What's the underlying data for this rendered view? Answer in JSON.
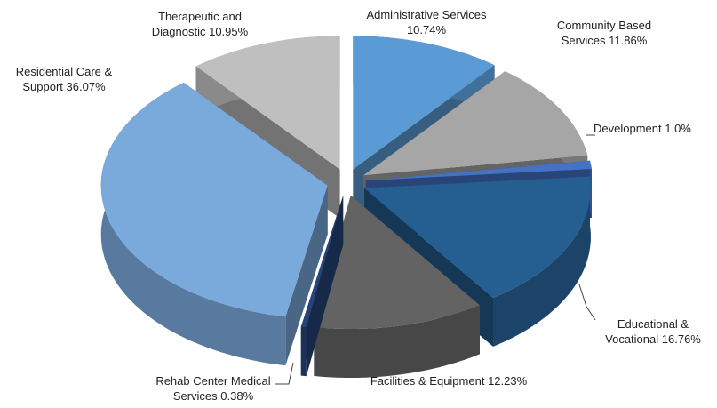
{
  "chart_data": {
    "type": "pie3d",
    "categories": [
      "Administrative Services",
      "Community Based Services",
      "Development",
      "Educational & Vocational",
      "Facilities & Equipment",
      "Rehab Center Medical Services",
      "Residential Care & Support",
      "Therapeutic and Diagnostic"
    ],
    "values": [
      10.74,
      11.86,
      1.0,
      16.76,
      12.23,
      0.38,
      36.07,
      10.95
    ],
    "value_labels": [
      "10.74%",
      "11.86%",
      "1.0%",
      "16.76%",
      "12.23%",
      "0.38%",
      "36.07%",
      "10.95%"
    ],
    "colors": [
      "#5b9bd5",
      "#a6a6a6",
      "#4472c4",
      "#255e91",
      "#636363",
      "#264478",
      "#7aaadc",
      "#bfbfbf"
    ]
  }
}
